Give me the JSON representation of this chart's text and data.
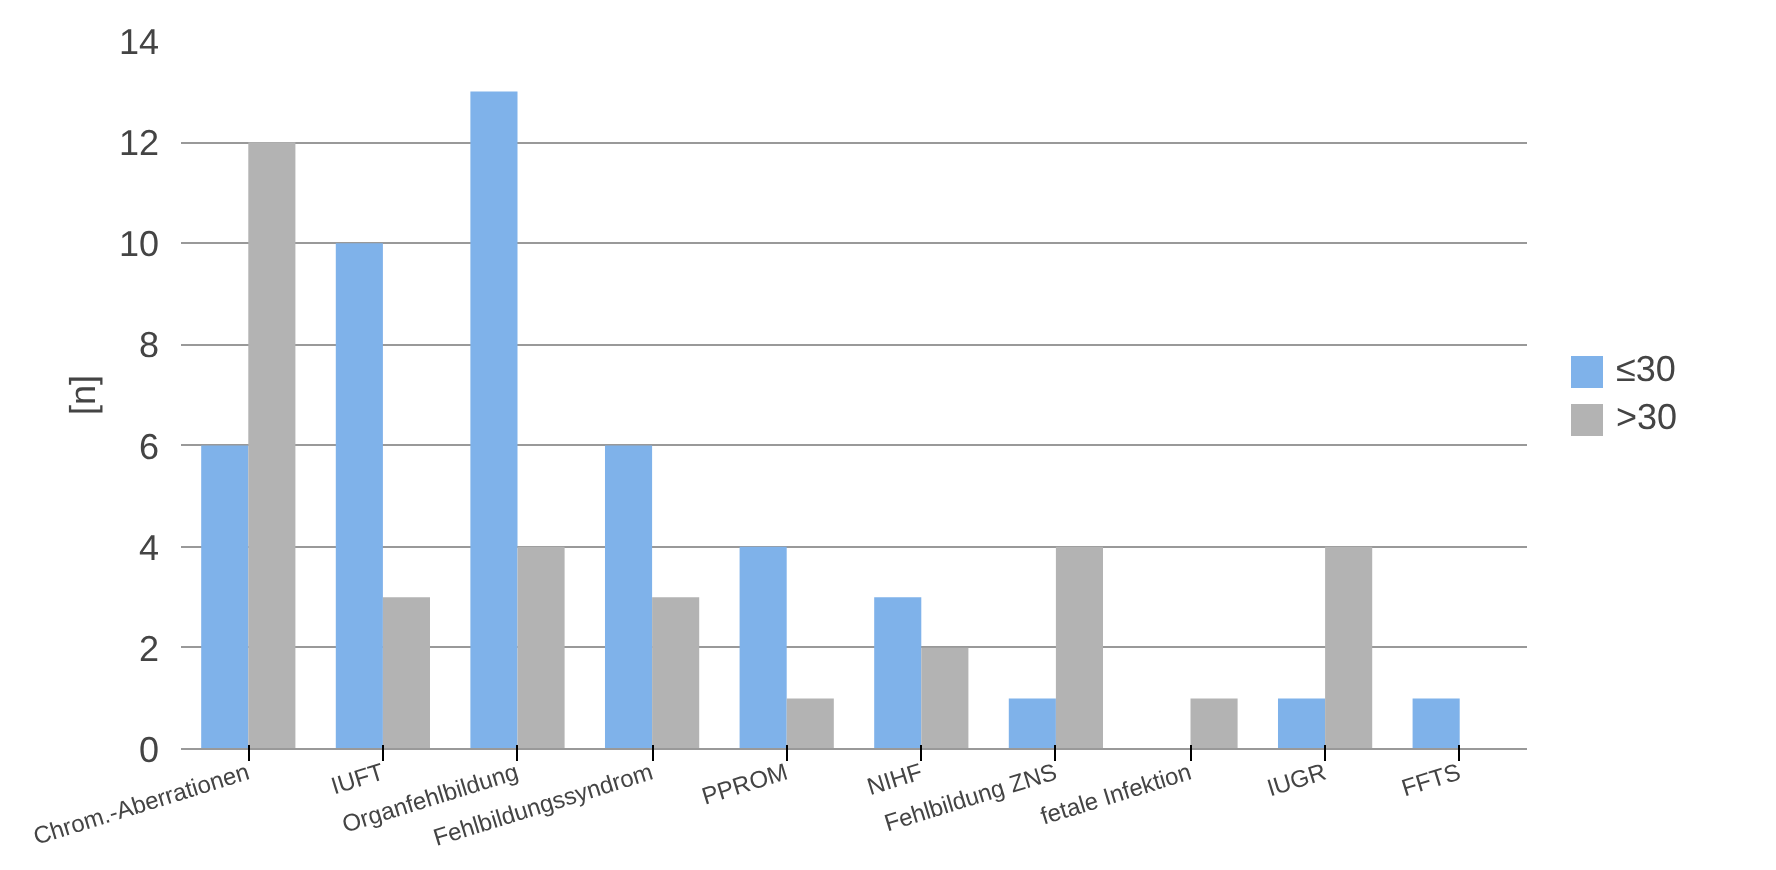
{
  "chart_data": {
    "type": "bar",
    "ylabel": "[n]",
    "categories": [
      "Chrom.-Aberrationen",
      "IUFT",
      "Organfehlbildung",
      "Fehlbildungssyndrom",
      "PPROM",
      "NIHF",
      "Fehlbildung ZNS",
      "fetale Infektion",
      "IUGR",
      "FFTS"
    ],
    "series": [
      {
        "name": "≤30",
        "color": "#7fb2ea",
        "values": [
          6,
          10,
          13,
          6,
          4,
          3,
          1,
          0,
          1,
          1
        ]
      },
      {
        "name": ">30",
        "color": "#b3b3b3",
        "values": [
          12,
          3,
          4,
          3,
          1,
          2,
          4,
          1,
          4,
          0
        ]
      }
    ],
    "ylim": [
      0,
      14
    ],
    "yticks": [
      0,
      2,
      4,
      6,
      8,
      10,
      12,
      14
    ],
    "grid": "y",
    "legend": "right"
  }
}
